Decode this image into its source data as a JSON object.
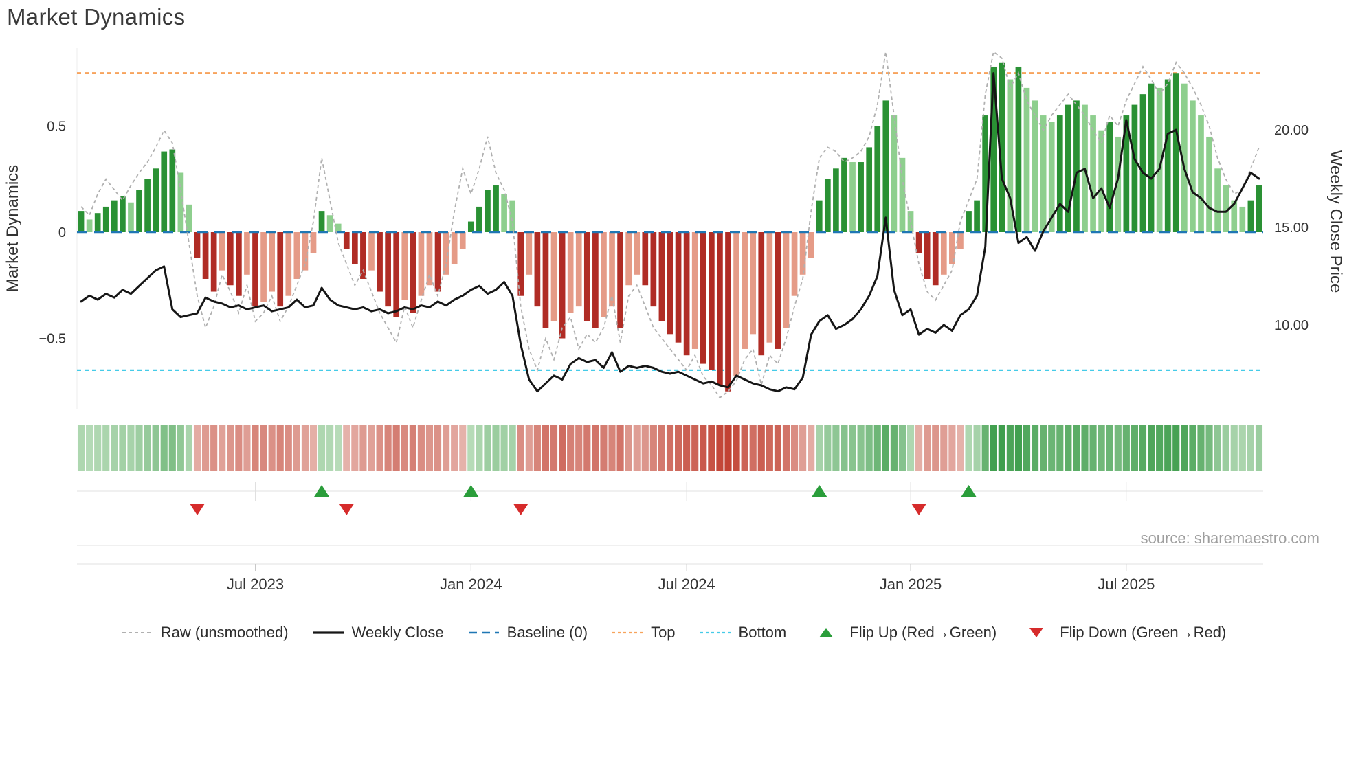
{
  "title": "Market Dynamics",
  "source_note": "source: sharemaestro.com",
  "axes": {
    "left_label": "Market Dynamics",
    "right_label": "Weekly Close Price",
    "left_tick_labels": [
      "0.5",
      "0",
      "−0.5"
    ],
    "left_tick_values": [
      0.5,
      0,
      -0.5
    ],
    "right_tick_labels": [
      "20.00",
      "15.00",
      "10.00"
    ],
    "right_tick_values": [
      20,
      15,
      10
    ],
    "x_tick_labels": [
      "Jul 2023",
      "Jan 2024",
      "Jul 2024",
      "Jan 2025",
      "Jul 2025"
    ],
    "x_tick_weeks": [
      21,
      47,
      73,
      100,
      126
    ]
  },
  "colors": {
    "bar_pos_strong": "#2a9134",
    "bar_pos_soft": "#8ecf8e",
    "bar_neg_strong": "#b02c25",
    "bar_neg_soft": "#e59b87",
    "raw_line": "#b0b0b0",
    "close_line": "#161616",
    "baseline": "#1f77b4",
    "top_line": "#f7a35c",
    "bottom_line": "#45cbe8",
    "flip_up": "#2a9d3a",
    "flip_down": "#d62b2b",
    "heat_pos_lo": "#d4ead2",
    "heat_pos_hi": "#3f9e4d",
    "heat_neg_lo": "#f1d7d1",
    "heat_neg_hi": "#bf3a2b",
    "axis_text": "#333333",
    "grid": "#e0e0e0",
    "source_text": "#9e9e9e"
  },
  "chart_data": {
    "type": "bar",
    "freq": "weekly",
    "start_date": "2023-02-06",
    "n_weeks": 143,
    "title": "Market Dynamics",
    "xlabel": "",
    "ylabel_left": "Market Dynamics",
    "ylabel_right": "Weekly Close Price",
    "left_ylim": [
      -0.87,
      0.87
    ],
    "right_ylim": [
      5.7,
      24.2
    ],
    "grid": "off",
    "legend_position": "bottom",
    "reference_lines": {
      "baseline": 0,
      "top": 0.75,
      "bottom": -0.65
    },
    "series": [
      {
        "name": "Market Dynamics (smoothed bars)",
        "type": "bar",
        "axis": "left",
        "values": [
          0.1,
          0.06,
          0.09,
          0.12,
          0.15,
          0.17,
          0.14,
          0.2,
          0.25,
          0.3,
          0.38,
          0.39,
          0.28,
          0.13,
          -0.12,
          -0.22,
          -0.28,
          -0.18,
          -0.25,
          -0.3,
          -0.2,
          -0.35,
          -0.33,
          -0.28,
          -0.35,
          -0.3,
          -0.22,
          -0.18,
          -0.1,
          0.1,
          0.08,
          0.04,
          -0.08,
          -0.15,
          -0.22,
          -0.18,
          -0.28,
          -0.35,
          -0.4,
          -0.32,
          -0.38,
          -0.3,
          -0.25,
          -0.28,
          -0.2,
          -0.15,
          -0.08,
          0.05,
          0.12,
          0.2,
          0.22,
          0.18,
          0.15,
          -0.3,
          -0.2,
          -0.35,
          -0.45,
          -0.42,
          -0.5,
          -0.38,
          -0.35,
          -0.42,
          -0.45,
          -0.4,
          -0.35,
          -0.45,
          -0.25,
          -0.2,
          -0.25,
          -0.35,
          -0.42,
          -0.48,
          -0.52,
          -0.58,
          -0.55,
          -0.62,
          -0.65,
          -0.72,
          -0.75,
          -0.68,
          -0.55,
          -0.48,
          -0.58,
          -0.52,
          -0.55,
          -0.45,
          -0.3,
          -0.2,
          -0.12,
          0.15,
          0.25,
          0.3,
          0.35,
          0.33,
          0.33,
          0.4,
          0.5,
          0.62,
          0.55,
          0.35,
          0.1,
          -0.1,
          -0.22,
          -0.25,
          -0.2,
          -0.15,
          -0.08,
          0.1,
          0.15,
          0.55,
          0.78,
          0.8,
          0.72,
          0.78,
          0.68,
          0.62,
          0.55,
          0.52,
          0.55,
          0.6,
          0.62,
          0.6,
          0.55,
          0.48,
          0.52,
          0.45,
          0.55,
          0.6,
          0.65,
          0.7,
          0.68,
          0.72,
          0.75,
          0.7,
          0.62,
          0.55,
          0.45,
          0.3,
          0.22,
          0.15,
          0.12,
          0.15,
          0.22
        ]
      },
      {
        "name": "Raw (unsmoothed)",
        "type": "line",
        "axis": "left",
        "values": [
          0.12,
          0.08,
          0.18,
          0.25,
          0.2,
          0.15,
          0.22,
          0.28,
          0.33,
          0.4,
          0.48,
          0.42,
          0.2,
          -0.05,
          -0.3,
          -0.45,
          -0.35,
          -0.2,
          -0.28,
          -0.38,
          -0.25,
          -0.42,
          -0.38,
          -0.3,
          -0.42,
          -0.35,
          -0.25,
          -0.15,
          0.05,
          0.35,
          0.15,
          -0.05,
          -0.15,
          -0.25,
          -0.18,
          -0.28,
          -0.38,
          -0.45,
          -0.52,
          -0.35,
          -0.45,
          -0.32,
          -0.2,
          -0.3,
          -0.15,
          0.1,
          0.3,
          0.18,
          0.3,
          0.45,
          0.28,
          0.2,
          0.05,
          -0.35,
          -0.55,
          -0.65,
          -0.5,
          -0.6,
          -0.45,
          -0.4,
          -0.55,
          -0.48,
          -0.52,
          -0.45,
          -0.3,
          -0.52,
          -0.3,
          -0.25,
          -0.35,
          -0.45,
          -0.5,
          -0.55,
          -0.6,
          -0.65,
          -0.58,
          -0.68,
          -0.72,
          -0.78,
          -0.75,
          -0.7,
          -0.6,
          -0.55,
          -0.72,
          -0.58,
          -0.62,
          -0.5,
          -0.35,
          -0.22,
          0.1,
          0.35,
          0.4,
          0.38,
          0.33,
          0.35,
          0.38,
          0.45,
          0.6,
          0.85,
          0.55,
          0.25,
          0.05,
          -0.15,
          -0.28,
          -0.32,
          -0.25,
          -0.18,
          0.05,
          0.15,
          0.25,
          0.65,
          0.85,
          0.82,
          0.68,
          0.75,
          0.62,
          0.55,
          0.48,
          0.55,
          0.6,
          0.65,
          0.6,
          0.55,
          0.48,
          0.42,
          0.55,
          0.5,
          0.62,
          0.7,
          0.78,
          0.72,
          0.65,
          0.7,
          0.8,
          0.75,
          0.68,
          0.6,
          0.5,
          0.35,
          0.25,
          0.18,
          0.2,
          0.3,
          0.4
        ]
      },
      {
        "name": "Weekly Close",
        "type": "line",
        "axis": "right",
        "values": [
          11.2,
          11.5,
          11.3,
          11.6,
          11.4,
          11.8,
          11.6,
          12.0,
          12.4,
          12.8,
          13.0,
          10.8,
          10.4,
          10.5,
          10.6,
          11.4,
          11.2,
          11.1,
          10.9,
          11.0,
          10.8,
          10.9,
          11.0,
          10.7,
          10.8,
          10.9,
          11.3,
          10.9,
          11.0,
          11.9,
          11.3,
          11.0,
          10.9,
          10.8,
          10.9,
          10.7,
          10.8,
          10.6,
          10.7,
          10.9,
          10.8,
          11.0,
          10.9,
          11.2,
          11.0,
          11.3,
          11.5,
          11.8,
          12.0,
          11.6,
          11.8,
          12.2,
          11.5,
          9.0,
          7.2,
          6.6,
          7.0,
          7.4,
          7.2,
          8.0,
          8.3,
          8.1,
          8.2,
          7.8,
          8.6,
          7.6,
          7.9,
          7.8,
          7.9,
          7.8,
          7.6,
          7.5,
          7.6,
          7.4,
          7.2,
          7.0,
          7.1,
          6.9,
          6.8,
          7.4,
          7.2,
          7.0,
          6.9,
          6.7,
          6.6,
          6.8,
          6.7,
          7.3,
          9.5,
          10.2,
          10.5,
          9.8,
          10.0,
          10.3,
          10.8,
          11.5,
          12.5,
          15.5,
          11.8,
          10.5,
          10.8,
          9.5,
          9.8,
          9.6,
          10.0,
          9.7,
          10.5,
          10.8,
          11.5,
          14.0,
          22.9,
          17.5,
          16.5,
          14.2,
          14.5,
          13.8,
          14.8,
          15.5,
          16.2,
          15.8,
          17.8,
          18.0,
          16.5,
          17.0,
          16.0,
          17.5,
          20.5,
          18.5,
          17.8,
          17.5,
          18.0,
          19.8,
          20.0,
          18.0,
          16.8,
          16.5,
          16.0,
          15.8,
          15.8,
          16.2,
          17.0,
          17.8,
          17.5
        ]
      }
    ],
    "flip_up_weeks": [
      29,
      47,
      89,
      107
    ],
    "flip_down_weeks": [
      14,
      32,
      53,
      101
    ]
  },
  "legend": {
    "position": "bottom",
    "items": [
      {
        "label": "Raw (unsmoothed)",
        "swatch": "line",
        "color": "#b0b0b0",
        "dash": "5 4",
        "width": 2
      },
      {
        "label": "Weekly Close",
        "swatch": "line",
        "color": "#161616",
        "dash": "",
        "width": 3.2
      },
      {
        "label": "Baseline (0)",
        "swatch": "line",
        "color": "#1f77b4",
        "dash": "12 7",
        "width": 2.6
      },
      {
        "label": "Top",
        "swatch": "line",
        "color": "#f7a35c",
        "dash": "4 4",
        "width": 2.2
      },
      {
        "label": "Bottom",
        "swatch": "line",
        "color": "#45cbe8",
        "dash": "4 4",
        "width": 2.2
      },
      {
        "label": "Flip Up (Red→Green)",
        "swatch": "triangle-up",
        "color": "#2a9d3a"
      },
      {
        "label": "Flip Down (Green→Red)",
        "swatch": "triangle-down",
        "color": "#d62b2b"
      }
    ]
  }
}
